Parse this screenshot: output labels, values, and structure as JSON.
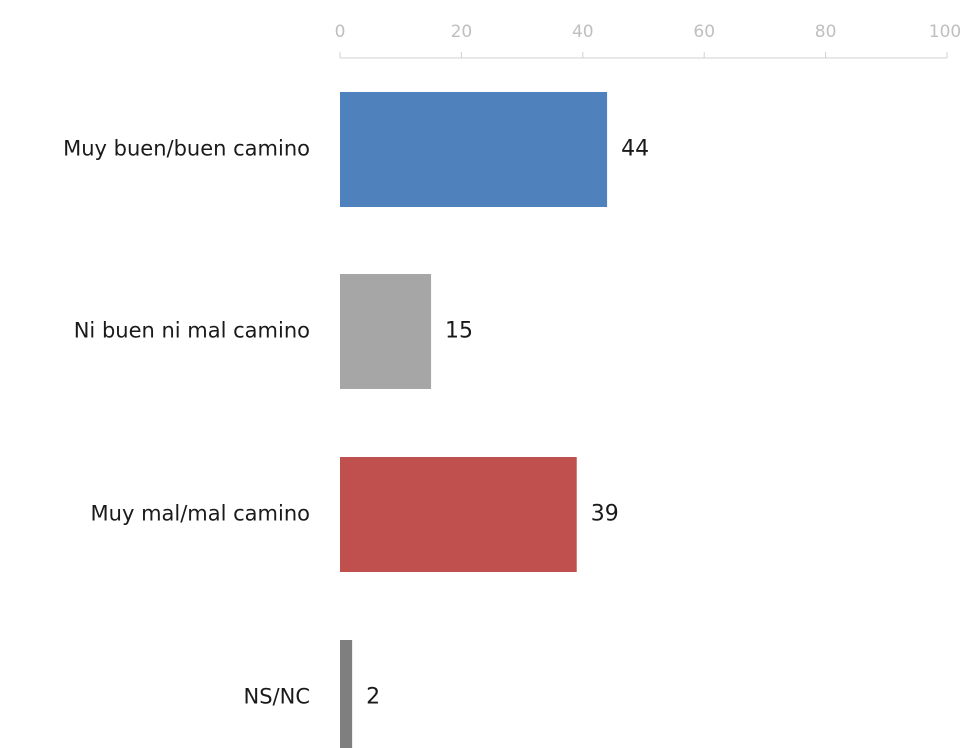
{
  "chart_data": {
    "type": "bar",
    "orientation": "horizontal",
    "categories": [
      "Muy buen/buen camino",
      "Ni buen ni mal camino",
      "Muy mal/mal camino",
      "NS/NC"
    ],
    "values": [
      44,
      15,
      39,
      2
    ],
    "colors": [
      "#4f81bd",
      "#a6a6a6",
      "#c0504d",
      "#7f7f7f"
    ],
    "xlim": [
      0,
      100
    ],
    "xticks": [
      0,
      20,
      40,
      60,
      80,
      100
    ],
    "axis_position": "top",
    "grid": false,
    "title": "",
    "xlabel": "",
    "ylabel": ""
  }
}
